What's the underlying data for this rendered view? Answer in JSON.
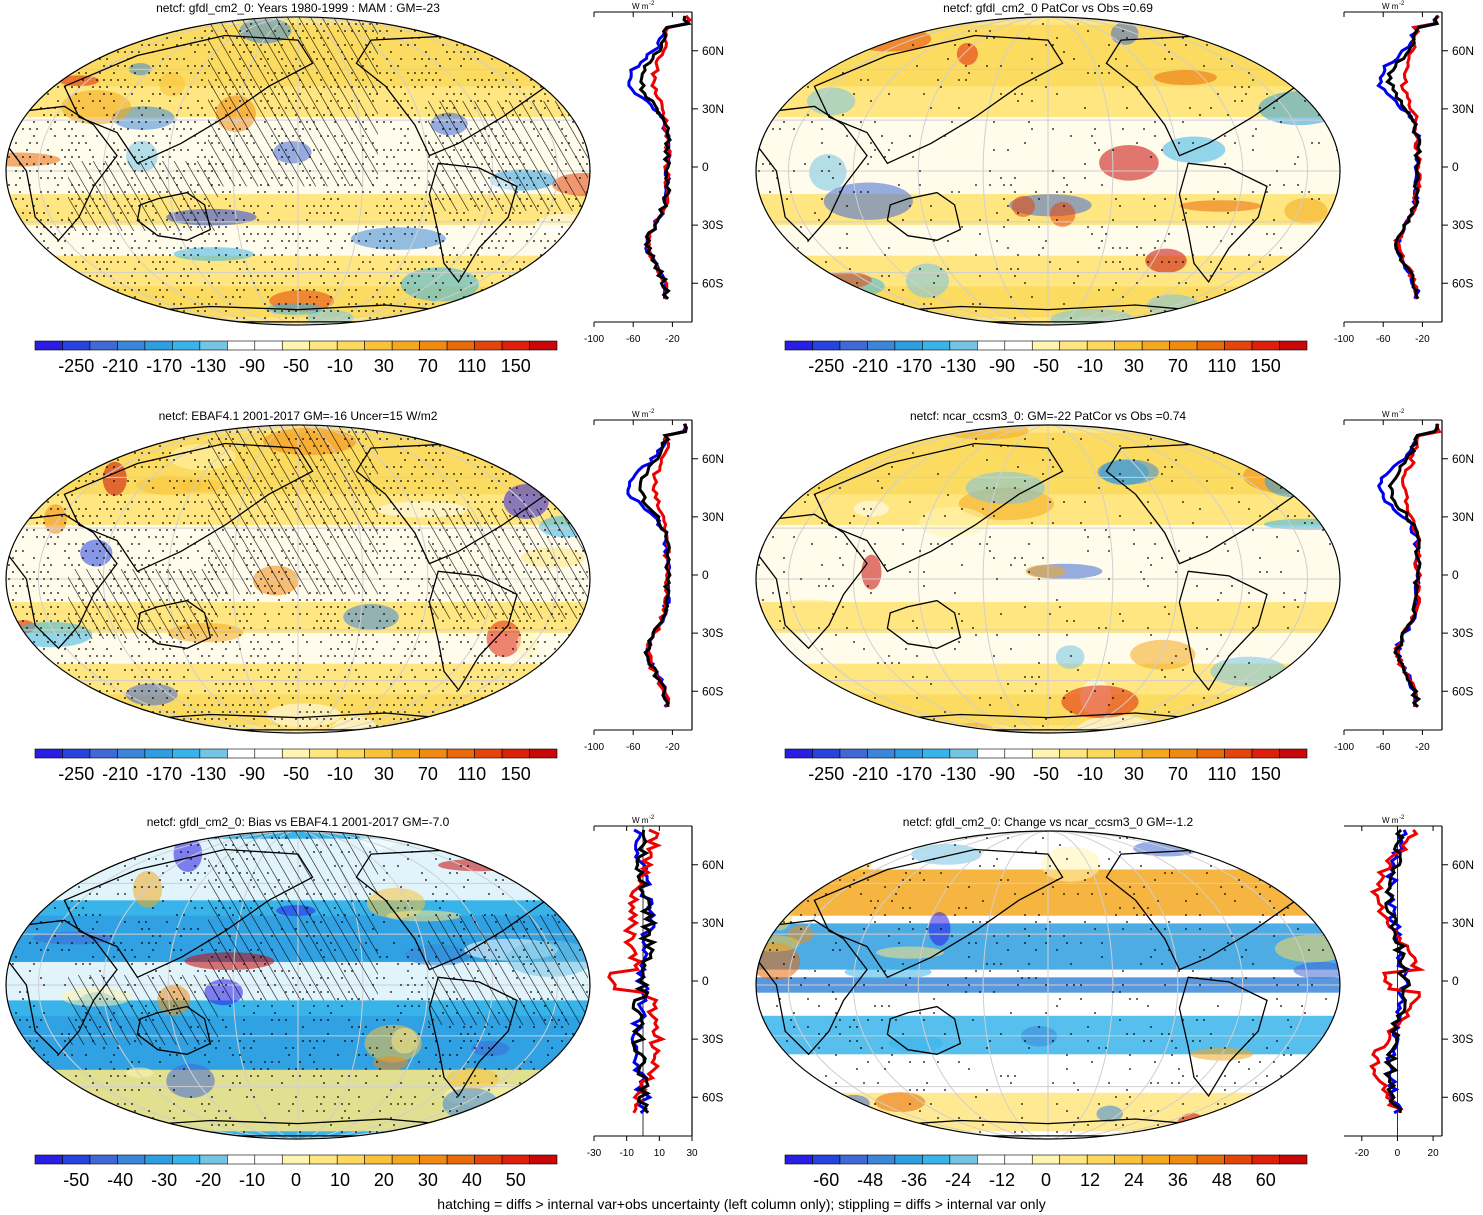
{
  "panels": [
    {
      "title": "netcf: gfdl_cm2_0: Years 1980-1999 : MAM : GM=-23",
      "scheme": "abs",
      "hatch": true,
      "stipple": 0.55,
      "colorbar_labels": [
        "-250",
        "-210",
        "-170",
        "-130",
        "-90",
        "-50",
        "-10",
        "30",
        "70",
        "110",
        "150"
      ],
      "profile": {
        "xticks": [
          "-100",
          "-60",
          "-20"
        ],
        "xrange": [
          -100,
          0
        ],
        "zero_line": false
      }
    },
    {
      "title": "netcf: gfdl_cm2_0 PatCor vs Obs =0.69",
      "scheme": "abs",
      "hatch": false,
      "stipple": 0.12,
      "colorbar_labels": [
        "-250",
        "-210",
        "-170",
        "-130",
        "-90",
        "-50",
        "-10",
        "30",
        "70",
        "110",
        "150"
      ],
      "profile": {
        "xticks": [
          "-100",
          "-60",
          "-20"
        ],
        "xrange": [
          -100,
          0
        ],
        "zero_line": false
      }
    },
    {
      "title": "netcf: EBAF4.1 2001-2017 GM=-16 Uncer=15 W/m2",
      "scheme": "abs",
      "hatch": true,
      "stipple": 0.6,
      "colorbar_labels": [
        "-250",
        "-210",
        "-170",
        "-130",
        "-90",
        "-50",
        "-10",
        "30",
        "70",
        "110",
        "150"
      ],
      "profile": {
        "xticks": [
          "-100",
          "-60",
          "-20"
        ],
        "xrange": [
          -100,
          0
        ],
        "zero_line": false
      }
    },
    {
      "title": "netcf: ncar_ccsm3_0: GM=-22 PatCor vs Obs =0.74",
      "scheme": "abs",
      "hatch": false,
      "stipple": 0.1,
      "colorbar_labels": [
        "-250",
        "-210",
        "-170",
        "-130",
        "-90",
        "-50",
        "-10",
        "30",
        "70",
        "110",
        "150"
      ],
      "profile": {
        "xticks": [
          "-100",
          "-60",
          "-20"
        ],
        "xrange": [
          -100,
          0
        ],
        "zero_line": false
      }
    },
    {
      "title": "netcf: gfdl_cm2_0: Bias vs EBAF4.1 2001-2017 GM=-7.0",
      "scheme": "bias",
      "hatch": true,
      "stipple": 0.3,
      "colorbar_labels": [
        "-50",
        "-40",
        "-30",
        "-20",
        "-10",
        "0",
        "10",
        "20",
        "30",
        "40",
        "50"
      ],
      "profile": {
        "xticks": [
          "-30",
          "-10",
          "10",
          "30"
        ],
        "xrange": [
          -30,
          30
        ],
        "zero_line": true
      }
    },
    {
      "title": "netcf: gfdl_cm2_0: Change vs ncar_ccsm3_0 GM=-1.2",
      "scheme": "change",
      "hatch": false,
      "stipple": 0.15,
      "colorbar_labels": [
        "-60",
        "-48",
        "-36",
        "-24",
        "-12",
        "0",
        "12",
        "24",
        "36",
        "48",
        "60"
      ],
      "profile": {
        "xticks": [
          "-20",
          "0",
          "20"
        ],
        "xrange": [
          -30,
          25
        ],
        "zero_line": true
      }
    }
  ],
  "profile_units": "W m",
  "profile_units_exp": "-2",
  "lat_labels": [
    "60N",
    "30N",
    "0",
    "30S",
    "60S"
  ],
  "colors": {
    "abs": [
      "#2a1ee6",
      "#2643e0",
      "#3f6ad6",
      "#3b86d8",
      "#2f9ee0",
      "#38b4ea",
      "#74c4e6",
      "#ffffff",
      "#ffffff",
      "#fff4b0",
      "#ffe680",
      "#fcd85c",
      "#f8c23a",
      "#f4a81e",
      "#f08a10",
      "#ea6a0a",
      "#e4440a",
      "#de200a",
      "#c80808"
    ],
    "bias": [
      "#2a1ee6",
      "#2643e0",
      "#3f6ad6",
      "#3b86d8",
      "#2f9ee0",
      "#38b4ea",
      "#74c4e6",
      "#ffffff",
      "#ffffff",
      "#fff4b0",
      "#ffe680",
      "#fcd85c",
      "#f8c23a",
      "#f4a81e",
      "#f08a10",
      "#ea6a0a",
      "#e4440a",
      "#de200a",
      "#c80808"
    ],
    "change": [
      "#2a1ee6",
      "#2643e0",
      "#3f6ad6",
      "#3b86d8",
      "#2f9ee0",
      "#38b4ea",
      "#74c4e6",
      "#ffffff",
      "#ffffff",
      "#fff4b0",
      "#ffe680",
      "#fcd85c",
      "#f8c23a",
      "#f4a81e",
      "#f08a10",
      "#ea6a0a",
      "#e4440a",
      "#de200a",
      "#c80808"
    ],
    "profile_lines": [
      "#0000ee",
      "#ee0000",
      "#000000"
    ]
  },
  "footer": "hatching = diffs > internal var+obs uncertainty (left column only); stippling = diffs > internal var only"
}
